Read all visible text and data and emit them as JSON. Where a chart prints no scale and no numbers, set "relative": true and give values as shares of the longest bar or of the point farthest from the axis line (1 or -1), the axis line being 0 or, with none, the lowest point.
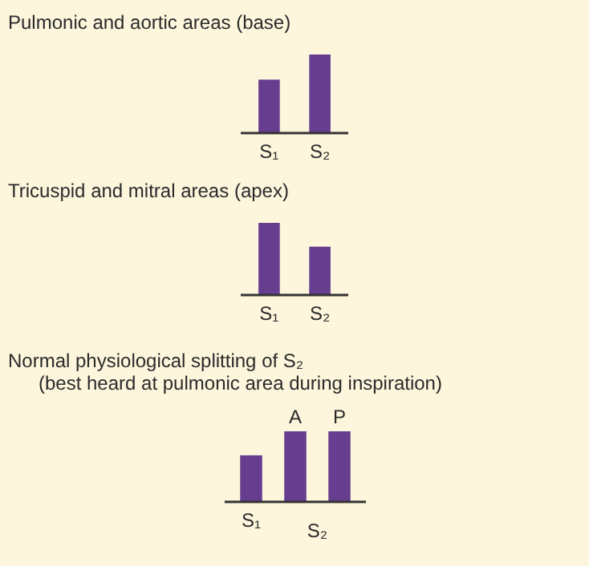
{
  "chart_data": [
    {
      "type": "bar",
      "title": "Pulmonic and aortic areas (base)",
      "categories": [
        "S₁",
        "S₂"
      ],
      "values": [
        0.68,
        1
      ],
      "color": "#663d8f",
      "relative": true
    },
    {
      "type": "bar",
      "title": "Tricuspid and mitral areas (apex)",
      "categories": [
        "S₁",
        "S₂"
      ],
      "values": [
        1,
        0.67
      ],
      "color": "#663d8f",
      "relative": true
    },
    {
      "type": "bar",
      "title": "Normal physiological splitting of S₂",
      "subtitle": "(best heard at pulmonic area during inspiration)",
      "categories": [
        "S₁",
        null,
        null
      ],
      "values": [
        0.66,
        1,
        1
      ],
      "annotations": [
        "A",
        "P",
        "S₂"
      ],
      "color": "#663d8f",
      "relative": true
    }
  ]
}
